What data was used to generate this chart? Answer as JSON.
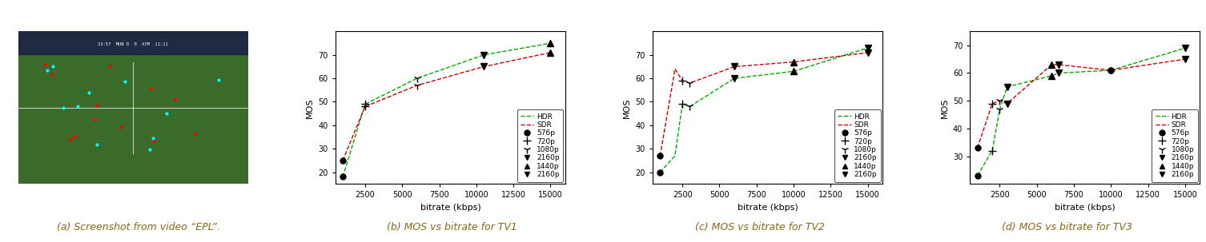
{
  "tv1": {
    "hdr_x": [
      1000,
      2500,
      6000,
      10500,
      15000
    ],
    "hdr_y": [
      18,
      49,
      60,
      70,
      75
    ],
    "sdr_x": [
      1000,
      2500,
      6000,
      10500,
      15000
    ],
    "sdr_y": [
      25,
      48,
      57,
      65,
      71
    ],
    "points": [
      {
        "x": 1000,
        "y_hdr": 18,
        "y_sdr": 25,
        "marker": "o"
      },
      {
        "x": 2500,
        "y_hdr": 49,
        "y_sdr": 48,
        "marker": "+"
      },
      {
        "x": 6000,
        "y_hdr": 60,
        "y_sdr": 57,
        "marker": "1"
      },
      {
        "x": 10500,
        "y_hdr": 70,
        "y_sdr": 65,
        "marker": "v"
      },
      {
        "x": 15000,
        "y_hdr": 75,
        "y_sdr": 71,
        "marker": "^"
      }
    ],
    "ylim": [
      15,
      80
    ],
    "yticks": [
      20,
      30,
      40,
      50,
      60,
      70
    ]
  },
  "tv2": {
    "hdr_x": [
      1000,
      2000,
      2500,
      3000,
      6000,
      10000,
      15000
    ],
    "hdr_y": [
      20,
      27,
      49,
      48,
      60,
      63,
      73
    ],
    "sdr_x": [
      1000,
      2000,
      2500,
      3000,
      6000,
      10000,
      15000
    ],
    "sdr_y": [
      27,
      64,
      59,
      58,
      65,
      67,
      71
    ],
    "points": [
      {
        "x": 1000,
        "y_hdr": 20,
        "y_sdr": 27,
        "marker": "o"
      },
      {
        "x": 2500,
        "y_hdr": 49,
        "y_sdr": 59,
        "marker": "+"
      },
      {
        "x": 3000,
        "y_hdr": 48,
        "y_sdr": 58,
        "marker": "1"
      },
      {
        "x": 6000,
        "y_hdr": 60,
        "y_sdr": 65,
        "marker": "v"
      },
      {
        "x": 10000,
        "y_hdr": 63,
        "y_sdr": 67,
        "marker": "^"
      },
      {
        "x": 15000,
        "y_hdr": 73,
        "y_sdr": 71,
        "marker": "v"
      }
    ],
    "ylim": [
      15,
      80
    ],
    "yticks": [
      20,
      30,
      40,
      50,
      60,
      70
    ]
  },
  "tv3": {
    "hdr_x": [
      1000,
      2000,
      2500,
      3000,
      6000,
      6500,
      10000,
      15000
    ],
    "hdr_y": [
      23,
      32,
      47,
      55,
      59,
      60,
      61,
      69
    ],
    "sdr_x": [
      1000,
      2000,
      2500,
      3000,
      6000,
      6500,
      10000,
      15000
    ],
    "sdr_y": [
      33,
      49,
      50,
      49,
      63,
      63,
      61,
      65
    ],
    "points": [
      {
        "x": 1000,
        "y_hdr": 23,
        "y_sdr": 33,
        "marker": "o"
      },
      {
        "x": 2000,
        "y_hdr": 32,
        "y_sdr": 49,
        "marker": "+"
      },
      {
        "x": 2500,
        "y_hdr": 47,
        "y_sdr": 50,
        "marker": "1"
      },
      {
        "x": 3000,
        "y_hdr": 55,
        "y_sdr": 49,
        "marker": "v"
      },
      {
        "x": 6000,
        "y_hdr": 59,
        "y_sdr": 63,
        "marker": "^"
      },
      {
        "x": 6500,
        "y_hdr": 60,
        "y_sdr": 63,
        "marker": "v"
      },
      {
        "x": 10000,
        "y_hdr": 61,
        "y_sdr": 61,
        "marker": "o"
      },
      {
        "x": 15000,
        "y_hdr": 69,
        "y_sdr": 65,
        "marker": "v"
      }
    ],
    "ylim": [
      20,
      75
    ],
    "yticks": [
      30,
      40,
      50,
      60,
      70
    ]
  },
  "hdr_color": "#00AA00",
  "sdr_color": "#CC0000",
  "xlabel": "bitrate (kbps)",
  "ylabel": "MOS",
  "xticks": [
    2500,
    5000,
    7500,
    10000,
    12500,
    15000
  ],
  "caption_a": "(a) Screenshot from video “EPL”.",
  "caption_b": "(b) MOS vs bitrate for TV1",
  "caption_c": "(c) MOS vs bitrate for TV2",
  "caption_d": "(d) MOS vs bitrate for TV3",
  "caption_color": "#8B6914",
  "caption_fontsize": 9
}
